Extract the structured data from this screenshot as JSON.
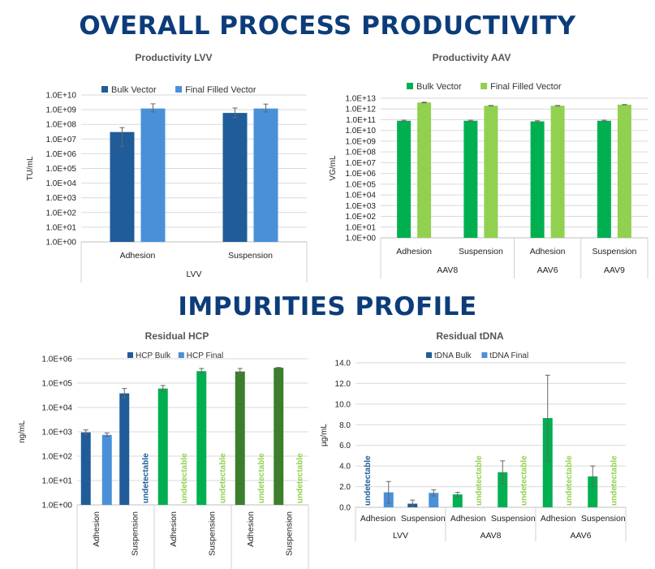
{
  "headers": {
    "productivity": "OVERALL PROCESS PRODUCTIVITY",
    "impurities": "IMPURITIES PROFILE"
  },
  "colors": {
    "lvv_bulk": "#1f5c99",
    "lvv_final": "#4a90d9",
    "aav_bulk": "#00b050",
    "aav_final": "#92d050",
    "aav_dark": "#3b7f2c",
    "undetectable_lvv": "#1f5c99",
    "undetectable_aav": "#92d050"
  },
  "chart_data": [
    {
      "id": "lvv",
      "type": "bar",
      "title": "Productivity LVV",
      "ylabel": "TU/mL",
      "scale": "log",
      "ylim": [
        1,
        10000000000
      ],
      "yticks": [
        "1.0E+00",
        "1.0E+01",
        "1.0E+02",
        "1.0E+03",
        "1.0E+04",
        "1.0E+05",
        "1.0E+06",
        "1.0E+07",
        "1.0E+08",
        "1.0E+09",
        "1.0E+10"
      ],
      "legend_position": "top-left",
      "categories": [
        "Adhesion",
        "Suspension"
      ],
      "groups": [
        {
          "label": "LVV",
          "span": 2
        }
      ],
      "series": [
        {
          "name": "Bulk Vector",
          "color": "#1f5c99",
          "values": [
            30000000,
            600000000
          ],
          "err_hi": [
            60000000,
            1300000000
          ],
          "err_lo": [
            3000000,
            300000000
          ]
        },
        {
          "name": "Final Filled Vector",
          "color": "#4a90d9",
          "values": [
            1200000000,
            1200000000
          ],
          "err_hi": [
            2500000000,
            2400000000
          ],
          "err_lo": [
            700000000,
            700000000
          ]
        }
      ]
    },
    {
      "id": "aav",
      "type": "bar",
      "title": "Productivity AAV",
      "ylabel": "VG/mL",
      "scale": "log",
      "ylim": [
        1,
        10000000000000
      ],
      "yticks": [
        "1.0E+00",
        "1.0E+01",
        "1.0E+02",
        "1.0E+03",
        "1.0E+04",
        "1.0E+05",
        "1.0E+06",
        "1.0E+07",
        "1.0E+08",
        "1.0E+09",
        "1.0E+10",
        "1.0E+11",
        "1.0E+12",
        "1.0E+13"
      ],
      "legend_position": "top-left",
      "categories": [
        "Adhesion",
        "Suspension",
        "Adhesion",
        "Suspension"
      ],
      "groups": [
        {
          "label": "AAV8",
          "span": 2
        },
        {
          "label": "AAV6",
          "span": 1
        },
        {
          "label": "AAV9",
          "span": 1
        }
      ],
      "series": [
        {
          "name": "Bulk Vector",
          "color": "#00b050",
          "values": [
            80000000000,
            80000000000,
            70000000000,
            80000000000
          ],
          "err_hi": [
            90000000000,
            90000000000,
            80000000000,
            90000000000
          ],
          "err_lo": [
            70000000000,
            70000000000,
            60000000000,
            70000000000
          ]
        },
        {
          "name": "Final Filled Vector",
          "color": "#92d050",
          "values": [
            4000000000000,
            2000000000000,
            2000000000000,
            2500000000000
          ],
          "err_hi": [
            4300000000000,
            2100000000000,
            2100000000000,
            2600000000000
          ],
          "err_lo": [
            3700000000000,
            1900000000000,
            1900000000000,
            2400000000000
          ]
        }
      ]
    },
    {
      "id": "hcp",
      "type": "bar",
      "title": "Residual HCP",
      "ylabel": "ng/mL",
      "scale": "log",
      "ylim": [
        1,
        1000000
      ],
      "yticks": [
        "1.0E+00",
        "1.0E+01",
        "1.0E+02",
        "1.0E+03",
        "1.0E+04",
        "1.0E+05",
        "1.0E+06"
      ],
      "legend_position": "top-center",
      "legend": [
        {
          "name": "HCP Bulk",
          "color": "#1f5c99"
        },
        {
          "name": "HCP Final",
          "color": "#4a90d9"
        }
      ],
      "categories": [
        "Adhesion",
        "Suspension",
        "Adhesion",
        "Suspension",
        "Adhesion",
        "Suspension"
      ],
      "undetectable_label": "undetectable",
      "points": [
        {
          "bulk": 950,
          "bulk_err": [
            800,
            1200
          ],
          "bulk_color": "#1f5c99",
          "final": 750,
          "final_err": [
            650,
            900
          ],
          "final_color": "#4a90d9"
        },
        {
          "bulk": 38000,
          "bulk_err": [
            25000,
            60000
          ],
          "bulk_color": "#1f5c99",
          "final": null,
          "final_color": "#1f5c99"
        },
        {
          "bulk": 60000,
          "bulk_err": [
            45000,
            80000
          ],
          "bulk_color": "#00b050",
          "final": null,
          "final_color": "#92d050"
        },
        {
          "bulk": 310000,
          "bulk_err": [
            250000,
            400000
          ],
          "bulk_color": "#00b050",
          "final": null,
          "final_color": "#92d050"
        },
        {
          "bulk": 300000,
          "bulk_err": [
            230000,
            400000
          ],
          "bulk_color": "#3b7f2c",
          "final": null,
          "final_color": "#92d050"
        },
        {
          "bulk": 430000,
          "bulk_err": [
            420000,
            440000
          ],
          "bulk_color": "#3b7f2c",
          "final": null,
          "final_color": "#92d050"
        }
      ]
    },
    {
      "id": "tdna",
      "type": "bar",
      "title": "Residual tDNA",
      "ylabel": "µg/mL",
      "scale": "linear",
      "ylim": [
        0,
        14
      ],
      "yticks": [
        "0.0",
        "2.0",
        "4.0",
        "6.0",
        "8.0",
        "10.0",
        "12.0",
        "14.0"
      ],
      "legend_position": "top-center",
      "legend": [
        {
          "name": "tDNA Bulk",
          "color": "#1f5c99"
        },
        {
          "name": "tDNA Final",
          "color": "#4a90d9"
        }
      ],
      "categories": [
        "Adhesion",
        "Suspension",
        "Adhesion",
        "Suspension",
        "Adhesion",
        "Suspension"
      ],
      "groups": [
        {
          "label": "LVV",
          "span": 2
        },
        {
          "label": "AAV8",
          "span": 2
        },
        {
          "label": "AAV6",
          "span": 2
        }
      ],
      "undetectable_label": "undetectable",
      "points": [
        {
          "bulk": null,
          "bulk_color": "#1f5c99",
          "final": 1.45,
          "final_err": [
            0.4,
            2.5
          ],
          "final_color": "#4a90d9"
        },
        {
          "bulk": 0.35,
          "bulk_err": [
            0.05,
            0.7
          ],
          "bulk_color": "#1f5c99",
          "final": 1.4,
          "final_err": [
            1.1,
            1.7
          ],
          "final_color": "#4a90d9"
        },
        {
          "bulk": 1.25,
          "bulk_err": [
            1.05,
            1.45
          ],
          "bulk_color": "#00b050",
          "final": null,
          "final_color": "#92d050"
        },
        {
          "bulk": 3.4,
          "bulk_err": [
            2.3,
            4.5
          ],
          "bulk_color": "#00b050",
          "final": null,
          "final_color": "#92d050"
        },
        {
          "bulk": 8.65,
          "bulk_err": [
            4.5,
            12.8
          ],
          "bulk_color": "#00b050",
          "final": null,
          "final_color": "#92d050"
        },
        {
          "bulk": 3.0,
          "bulk_err": [
            2.0,
            4.0
          ],
          "bulk_color": "#00b050",
          "final": null,
          "final_color": "#92d050"
        }
      ]
    }
  ]
}
